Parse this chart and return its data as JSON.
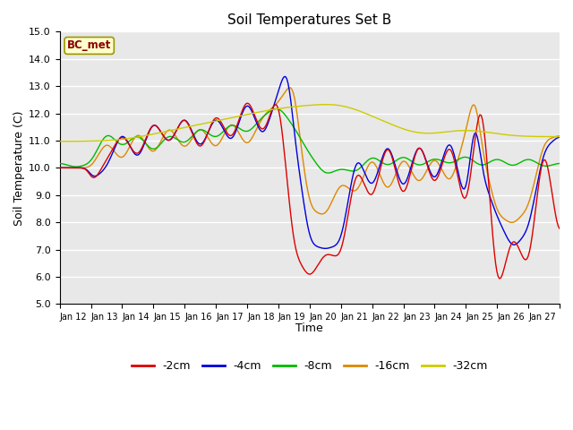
{
  "title": "Soil Temperatures Set B",
  "xlabel": "Time",
  "ylabel": "Soil Temperature (C)",
  "ylim": [
    5.0,
    15.0
  ],
  "yticks": [
    5.0,
    6.0,
    7.0,
    8.0,
    9.0,
    10.0,
    11.0,
    12.0,
    13.0,
    14.0,
    15.0
  ],
  "annotation": "BC_met",
  "plot_bg": "#e8e8e8",
  "fig_bg": "#ffffff",
  "grid_color": "#ffffff",
  "x_labels": [
    "Jan 12",
    "Jan 13",
    "Jan 14",
    "Jan 15",
    "Jan 16",
    "Jan 17",
    "Jan 18",
    "Jan 19",
    "Jan 20",
    "Jan 21",
    "Jan 22",
    "Jan 23",
    "Jan 24",
    "Jan 25",
    "Jan 26",
    "Jan 27"
  ],
  "n_days": 16,
  "pts_per_day": 24,
  "series_colors": {
    "-2cm": "#dd0000",
    "-4cm": "#0000dd",
    "-8cm": "#00bb00",
    "-16cm": "#dd8800",
    "-32cm": "#cccc00"
  },
  "legend_order": [
    "-2cm",
    "-4cm",
    "-8cm",
    "-16cm",
    "-32cm"
  ]
}
